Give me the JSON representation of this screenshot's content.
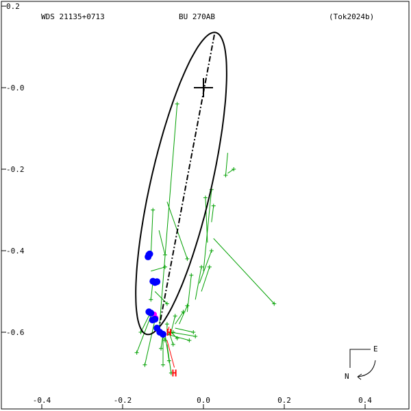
{
  "chart_data": {
    "type": "scatter",
    "header": {
      "left": "WDS 21135+0713",
      "center": "BU  270AB",
      "right": "(Tok2024b)"
    },
    "xlim": [
      0.5,
      -0.5
    ],
    "ylim": [
      0.2,
      -0.8
    ],
    "x_ticks": [
      {
        "v": -0.4,
        "label": "-0.4"
      },
      {
        "v": -0.2,
        "label": "-0.2"
      },
      {
        "v": 0.0,
        "label": "0.0"
      },
      {
        "v": 0.2,
        "label": "0.2"
      },
      {
        "v": 0.4,
        "label": "0.4"
      }
    ],
    "y_ticks": [
      {
        "v": 0.2,
        "label": "0.2"
      },
      {
        "v": 0.0,
        "label": "-0.0"
      },
      {
        "v": -0.2,
        "label": "-0.2"
      },
      {
        "v": -0.4,
        "label": "-0.4"
      },
      {
        "v": -0.6,
        "label": "-0.6"
      }
    ],
    "orbit_ellipse": {
      "center": [
        -0.055,
        -0.235
      ],
      "semi_major": 0.38,
      "semi_minor": 0.075,
      "angle_deg": 77
    },
    "line_of_apsides": [
      [
        0.027,
        0.13
      ],
      [
        -0.112,
        -0.6
      ]
    ],
    "primary": [
      0.0,
      0.0
    ],
    "blue_points": [
      [
        -0.135,
        -0.41
      ],
      [
        -0.137,
        -0.415
      ],
      [
        -0.133,
        -0.408
      ],
      [
        -0.125,
        -0.475
      ],
      [
        -0.12,
        -0.478
      ],
      [
        -0.115,
        -0.476
      ],
      [
        -0.135,
        -0.55
      ],
      [
        -0.13,
        -0.553
      ],
      [
        -0.12,
        -0.568
      ],
      [
        -0.126,
        -0.57
      ],
      [
        -0.115,
        -0.59
      ],
      [
        -0.108,
        -0.6
      ],
      [
        -0.1,
        -0.605
      ]
    ],
    "magenta_points": [
      [
        -0.122,
        -0.556
      ],
      [
        -0.118,
        -0.565
      ]
    ],
    "green_points": [
      {
        "obs": [
          -0.065,
          -0.04
        ],
        "fit": [
          -0.11,
          -0.6
        ]
      },
      {
        "obs": [
          0.075,
          -0.2
        ],
        "fit": [
          0.06,
          -0.21
        ]
      },
      {
        "obs": [
          0.055,
          -0.215
        ],
        "fit": [
          0.06,
          -0.16
        ]
      },
      {
        "obs": [
          0.175,
          -0.53
        ],
        "fit": [
          0.025,
          -0.37
        ]
      },
      {
        "obs": [
          0.025,
          -0.29
        ],
        "fit": [
          0.02,
          -0.33
        ]
      },
      {
        "obs": [
          0.02,
          -0.25
        ],
        "fit": [
          0.0,
          -0.45
        ]
      },
      {
        "obs": [
          0.005,
          -0.27
        ],
        "fit": [
          0.01,
          -0.38
        ]
      },
      {
        "obs": [
          0.02,
          -0.4
        ],
        "fit": [
          -0.01,
          -0.48
        ]
      },
      {
        "obs": [
          0.015,
          -0.44
        ],
        "fit": [
          -0.005,
          -0.5
        ]
      },
      {
        "obs": [
          -0.005,
          -0.44
        ],
        "fit": [
          -0.02,
          -0.52
        ]
      },
      {
        "obs": [
          -0.03,
          -0.46
        ],
        "fit": [
          -0.04,
          -0.55
        ]
      },
      {
        "obs": [
          -0.04,
          -0.535
        ],
        "fit": [
          -0.06,
          -0.58
        ]
      },
      {
        "obs": [
          -0.05,
          -0.55
        ],
        "fit": [
          -0.07,
          -0.58
        ]
      },
      {
        "obs": [
          -0.025,
          -0.6
        ],
        "fit": [
          -0.07,
          -0.59
        ]
      },
      {
        "obs": [
          -0.02,
          -0.61
        ],
        "fit": [
          -0.08,
          -0.6
        ]
      },
      {
        "obs": [
          -0.065,
          -0.615
        ],
        "fit": [
          -0.08,
          -0.6
        ]
      },
      {
        "obs": [
          -0.075,
          -0.63
        ],
        "fit": [
          -0.085,
          -0.6
        ]
      },
      {
        "obs": [
          -0.035,
          -0.62
        ],
        "fit": [
          -0.09,
          -0.605
        ]
      },
      {
        "obs": [
          -0.075,
          -0.6
        ],
        "fit": [
          -0.09,
          -0.605
        ]
      },
      {
        "obs": [
          -0.095,
          -0.62
        ],
        "fit": [
          -0.1,
          -0.605
        ]
      },
      {
        "obs": [
          -0.105,
          -0.64
        ],
        "fit": [
          -0.1,
          -0.605
        ]
      },
      {
        "obs": [
          -0.1,
          -0.68
        ],
        "fit": [
          -0.1,
          -0.605
        ]
      },
      {
        "obs": [
          -0.085,
          -0.67
        ],
        "fit": [
          -0.095,
          -0.605
        ]
      },
      {
        "obs": [
          -0.07,
          -0.56
        ],
        "fit": [
          -0.08,
          -0.6
        ]
      },
      {
        "obs": [
          -0.09,
          -0.58
        ],
        "fit": [
          -0.09,
          -0.6
        ]
      },
      {
        "obs": [
          -0.155,
          -0.6
        ],
        "fit": [
          -0.13,
          -0.55
        ]
      },
      {
        "obs": [
          -0.165,
          -0.65
        ],
        "fit": [
          -0.13,
          -0.56
        ]
      },
      {
        "obs": [
          -0.145,
          -0.68
        ],
        "fit": [
          -0.12,
          -0.57
        ]
      },
      {
        "obs": [
          -0.125,
          -0.3
        ],
        "fit": [
          -0.13,
          -0.41
        ]
      },
      {
        "obs": [
          -0.095,
          -0.41
        ],
        "fit": [
          -0.11,
          -0.35
        ]
      },
      {
        "obs": [
          -0.04,
          -0.42
        ],
        "fit": [
          -0.09,
          -0.28
        ]
      },
      {
        "obs": [
          -0.095,
          -0.44
        ],
        "fit": [
          -0.13,
          -0.45
        ]
      },
      {
        "obs": [
          -0.13,
          -0.52
        ],
        "fit": [
          -0.125,
          -0.475
        ]
      },
      {
        "obs": [
          -0.09,
          -0.53
        ],
        "fit": [
          -0.12,
          -0.5
        ]
      },
      {
        "obs": [
          -0.08,
          -0.7
        ],
        "fit": [
          -0.09,
          -0.63
        ]
      }
    ],
    "h_markers": [
      {
        "pos": [
          -0.085,
          -0.6
        ],
        "label": "H",
        "to": [
          -0.09,
          -0.605
        ]
      },
      {
        "pos": [
          -0.072,
          -0.7
        ],
        "label": "H",
        "to": [
          -0.09,
          -0.62
        ]
      }
    ],
    "compass": {
      "e_label": "E",
      "n_label": "N"
    }
  }
}
